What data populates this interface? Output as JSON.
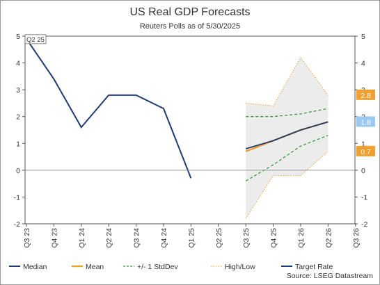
{
  "chart_data": {
    "type": "line",
    "title": "US Real GDP Forecasts",
    "subtitle": "Reuters Polls as of 5/30/2025",
    "categories": [
      "Q3 23",
      "Q4 23",
      "Q1 24",
      "Q2 24",
      "Q3 24",
      "Q4 24",
      "Q1 25",
      "Q2 25",
      "Q3 25",
      "Q4 25",
      "Q1 26",
      "Q2 26",
      "Q3 26"
    ],
    "ylim": [
      -2,
      5
    ],
    "yticks": [
      "-2",
      "-1",
      "0",
      "1",
      "2",
      "3",
      "4",
      "5"
    ],
    "series": [
      {
        "name": "Median",
        "color": "#1f3b73",
        "style": "solid",
        "x": [
          0,
          1,
          2,
          3,
          4,
          5,
          6
        ],
        "values": [
          4.9,
          3.4,
          1.6,
          2.8,
          2.8,
          2.3,
          -0.3
        ]
      },
      {
        "name": "Mean",
        "color": "#f0a030",
        "style": "solid",
        "x": [
          8,
          9,
          10,
          11
        ],
        "values": [
          0.7,
          1.1,
          1.5,
          1.8
        ]
      },
      {
        "name": "+/- 1 StdDev",
        "color": "#3a9a3a",
        "style": "dashed",
        "x": [
          8,
          9,
          10,
          11
        ],
        "upper": [
          2.0,
          2.0,
          2.1,
          2.3
        ],
        "lower": [
          -0.4,
          0.2,
          0.9,
          1.3
        ]
      },
      {
        "name": "High/Low",
        "color": "#f0a030",
        "style": "dotted",
        "x": [
          8,
          9,
          10,
          11
        ],
        "high": [
          2.5,
          2.4,
          4.2,
          2.8
        ],
        "low": [
          -1.8,
          -0.2,
          -0.2,
          0.7
        ]
      },
      {
        "name": "Target Rate",
        "color": "#1f3b73",
        "style": "solid",
        "x": [
          8,
          9,
          10,
          11
        ],
        "values": [
          0.8,
          1.1,
          1.5,
          1.8
        ]
      }
    ],
    "annotations": {
      "start_label": "Q2 25",
      "end_badges": [
        {
          "text": "2.8",
          "value": 2.8,
          "color": "#f0a030"
        },
        {
          "text": "1.8",
          "value": 1.8,
          "color": "#9ac8f0"
        },
        {
          "text": "0.7",
          "value": 0.7,
          "color": "#f0a030"
        }
      ]
    },
    "legend_position": "bottom",
    "grid": false
  },
  "source": "Source: LSEG Datastream"
}
